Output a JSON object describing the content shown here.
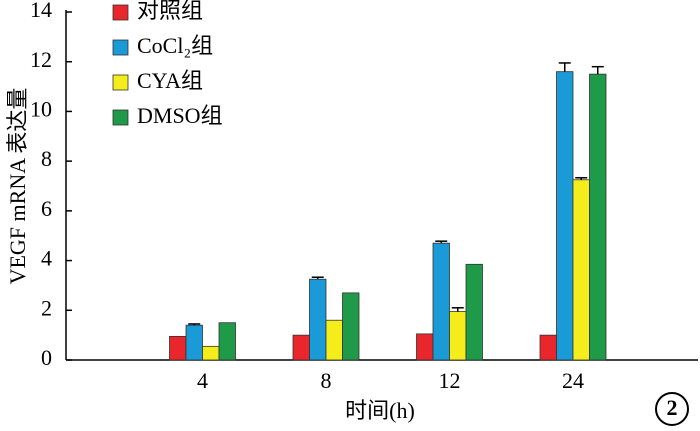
{
  "chart_data": {
    "type": "bar",
    "y_label": "VEGF mRNA 表达量",
    "x_label": "时间(h)",
    "annotation": "2",
    "categories": [
      "4",
      "8",
      "12",
      "24"
    ],
    "series": [
      {
        "name": "对照组",
        "color": "#e8262b",
        "values": [
          0.95,
          1.0,
          1.05,
          1.0
        ],
        "errors": [
          null,
          null,
          null,
          null
        ]
      },
      {
        "name": "CoCl₂组",
        "color": "#1a9ad6",
        "values": [
          1.4,
          3.25,
          4.7,
          11.6
        ],
        "errors": [
          0.05,
          0.08,
          0.08,
          0.35
        ]
      },
      {
        "name": "CYA组",
        "color": "#f5ec1c",
        "values": [
          0.55,
          1.6,
          1.95,
          7.25
        ],
        "errors": [
          null,
          null,
          0.15,
          0.08
        ]
      },
      {
        "name": "DMSO组",
        "color": "#1e9a49",
        "values": [
          1.5,
          2.7,
          3.85,
          11.5
        ],
        "errors": [
          null,
          null,
          null,
          0.3
        ]
      }
    ],
    "ylim": [
      0,
      14
    ],
    "yticks": [
      0,
      2,
      4,
      6,
      8,
      10,
      12,
      14
    ],
    "legend": "top-left"
  }
}
